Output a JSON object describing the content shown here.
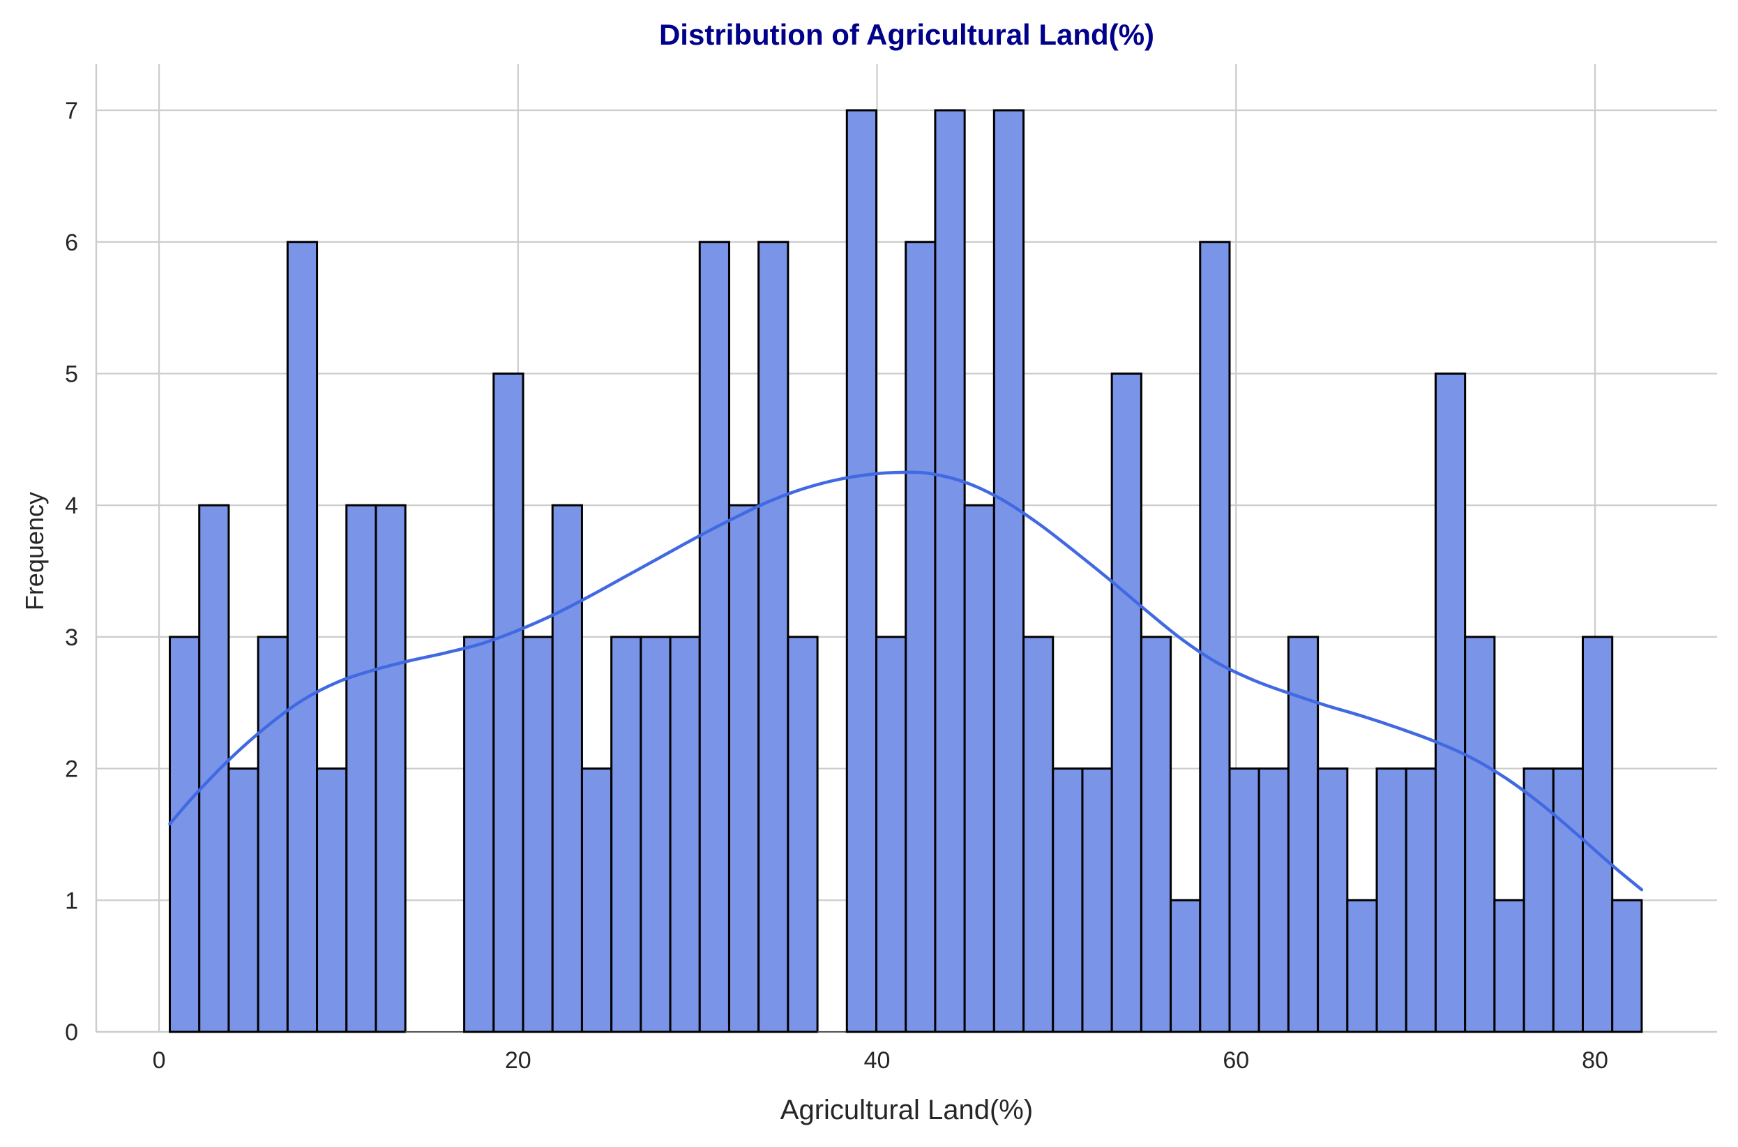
{
  "colors": {
    "title": "#00008b",
    "bar_fill": "#7a95e8",
    "bar_edge": "#000000",
    "kde_line": "#4169e1",
    "grid": "#cccccc",
    "text": "#262626"
  },
  "chart_data": {
    "type": "bar",
    "subtype": "histogram with kde curve",
    "title": "Distribution of Agricultural Land(%)",
    "xlabel": "Agricultural Land(%)",
    "ylabel": "Frequency",
    "xlim": [
      -3.5,
      86.8
    ],
    "ylim": [
      0,
      7.35
    ],
    "x_ticks": [
      0,
      20,
      40,
      60,
      80
    ],
    "y_ticks": [
      0,
      1,
      2,
      3,
      4,
      5,
      6,
      7
    ],
    "grid": true,
    "legend": "none",
    "bin_range": [
      0.6,
      82.6
    ],
    "bin_count": 50,
    "frequencies": [
      3,
      4,
      2,
      3,
      6,
      2,
      4,
      4,
      0,
      0,
      3,
      5,
      3,
      4,
      2,
      3,
      3,
      3,
      6,
      4,
      6,
      3,
      0,
      7,
      3,
      6,
      7,
      4,
      7,
      3,
      2,
      2,
      5,
      3,
      1,
      6,
      2,
      2,
      3,
      2,
      1,
      2,
      2,
      5,
      3,
      1,
      2,
      2,
      3,
      1
    ],
    "kde_x": [
      0.6,
      2,
      4,
      6,
      8,
      10,
      12,
      14,
      16,
      18,
      20,
      22,
      24,
      26,
      28,
      30,
      32,
      34,
      36,
      38,
      40,
      41.5,
      43,
      45,
      47,
      49,
      51,
      53,
      55,
      57,
      59,
      61,
      63,
      65,
      67,
      69,
      71,
      73,
      75,
      77,
      79,
      81,
      82.6
    ],
    "kde_y": [
      1.58,
      1.8,
      2.08,
      2.32,
      2.52,
      2.66,
      2.75,
      2.82,
      2.88,
      2.95,
      3.05,
      3.17,
      3.31,
      3.46,
      3.61,
      3.76,
      3.9,
      4.03,
      4.13,
      4.2,
      4.24,
      4.25,
      4.24,
      4.17,
      4.04,
      3.86,
      3.65,
      3.43,
      3.2,
      2.98,
      2.8,
      2.67,
      2.57,
      2.48,
      2.4,
      2.31,
      2.21,
      2.09,
      1.93,
      1.73,
      1.5,
      1.26,
      1.08
    ]
  }
}
